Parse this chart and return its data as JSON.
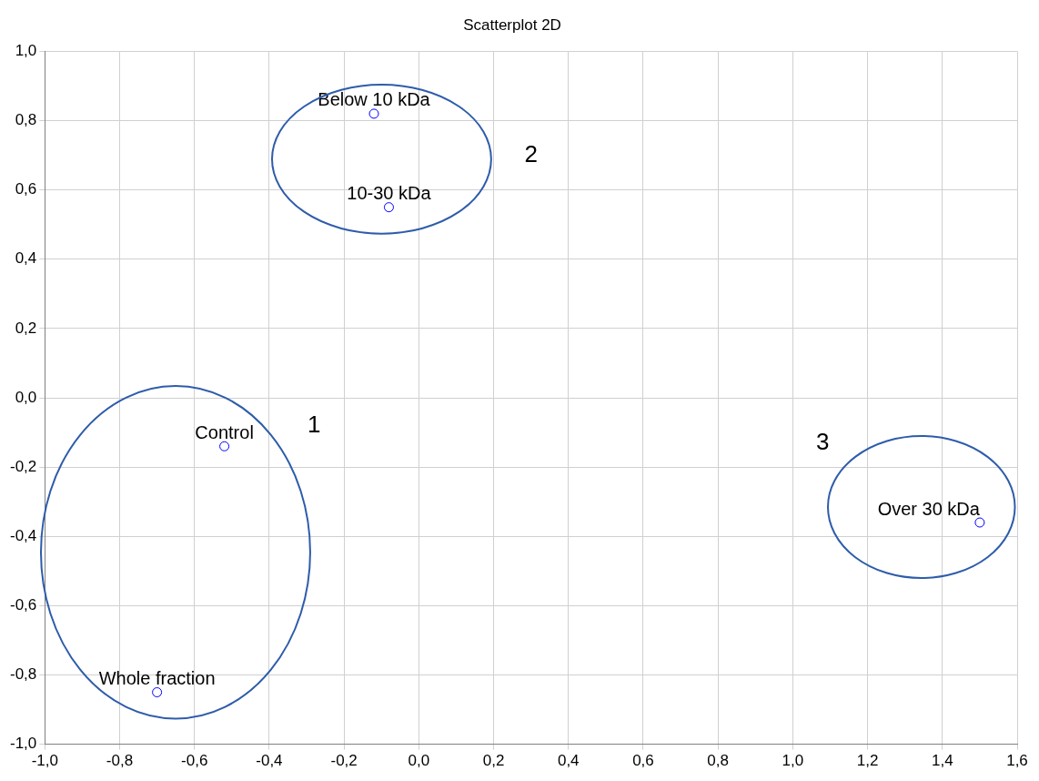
{
  "chart_data": {
    "type": "scatter",
    "title": "Scatterplot 2D",
    "x": [
      -0.12,
      -0.08,
      -0.52,
      -0.7,
      1.5
    ],
    "values": [
      0.82,
      0.55,
      -0.14,
      -0.85,
      -0.36
    ],
    "color": "#0000ff",
    "marker": "circle",
    "grid": true,
    "legend": false,
    "xlim": [
      -1.0,
      1.6
    ],
    "xticks": [
      {
        "value": -1.0,
        "label": "-1,0"
      },
      {
        "value": -0.8,
        "label": "-0,8"
      },
      {
        "value": -0.6,
        "label": "-0,6"
      },
      {
        "value": -0.4,
        "label": "-0,4"
      },
      {
        "value": -0.2,
        "label": "-0,2"
      },
      {
        "value": 0.0,
        "label": "0,0"
      },
      {
        "value": 0.2,
        "label": "0,2"
      },
      {
        "value": 0.4,
        "label": "0,4"
      },
      {
        "value": 0.6,
        "label": "0,6"
      },
      {
        "value": 0.8,
        "label": "0,8"
      },
      {
        "value": 1.0,
        "label": "1,0"
      },
      {
        "value": 1.2,
        "label": "1,2"
      },
      {
        "value": 1.4,
        "label": "1,4"
      },
      {
        "value": 1.6,
        "label": "1,6"
      }
    ],
    "ylim": [
      -1.0,
      1.0
    ],
    "yticks": [
      {
        "value": -1.0,
        "label": "-1,0"
      },
      {
        "value": -0.8,
        "label": "-0,8"
      },
      {
        "value": -0.6,
        "label": "-0,6"
      },
      {
        "value": -0.4,
        "label": "-0,4"
      },
      {
        "value": -0.2,
        "label": "-0,2"
      },
      {
        "value": 0.0,
        "label": "0,0"
      },
      {
        "value": 0.2,
        "label": "0,2"
      },
      {
        "value": 0.4,
        "label": "0,4"
      },
      {
        "value": 0.6,
        "label": "0,6"
      },
      {
        "value": 0.8,
        "label": "0,8"
      },
      {
        "value": 1.0,
        "label": "1,0"
      }
    ],
    "annotations": [
      {
        "text": "Below 10 kDa",
        "x": -0.12,
        "y": 0.82
      },
      {
        "text": "10-30 kDa",
        "x": -0.08,
        "y": 0.55
      },
      {
        "text": "Control",
        "x": -0.52,
        "y": -0.14
      },
      {
        "text": "Whole fraction",
        "x": -0.7,
        "y": -0.85
      },
      {
        "text": "Over 30 kDa",
        "x": 1.5,
        "y": -0.36
      },
      "1",
      "2",
      "3"
    ]
  }
}
